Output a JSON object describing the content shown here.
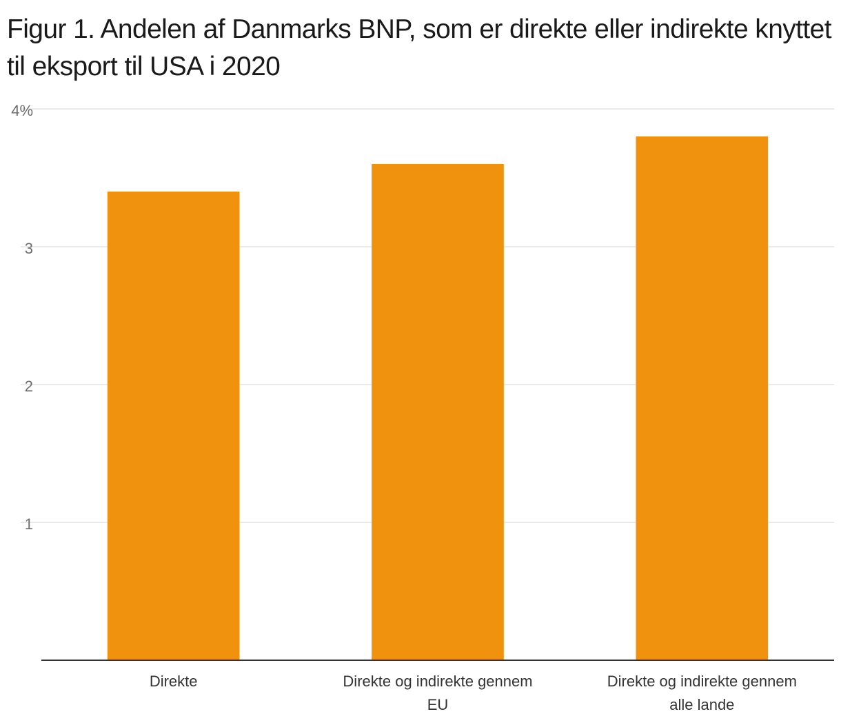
{
  "chart": {
    "title": "Figur 1. Andelen af Danmarks BNP, som er direkte eller indirekte knyttet til eksport til USA i 2020"
  },
  "colors": {
    "bar": "#F0920E",
    "grid": "#e3e3e3",
    "axis": "#333333"
  },
  "chart_data": {
    "type": "bar",
    "title": "Figur 1. Andelen af Danmarks BNP, som er direkte eller indirekte knyttet til eksport til USA i 2020",
    "categories": [
      [
        "Direkte"
      ],
      [
        "Direkte og indirekte gennem",
        "EU"
      ],
      [
        "Direkte og indirekte gennem",
        "alle lande"
      ]
    ],
    "values": [
      3.4,
      3.6,
      3.8
    ],
    "ylim": [
      0,
      4
    ],
    "yticks": [
      1,
      2,
      3,
      4
    ],
    "ytick_labels": [
      "1",
      "2",
      "3",
      "4%"
    ],
    "xlabel": "",
    "ylabel": "",
    "grid": true,
    "legend": "none"
  }
}
